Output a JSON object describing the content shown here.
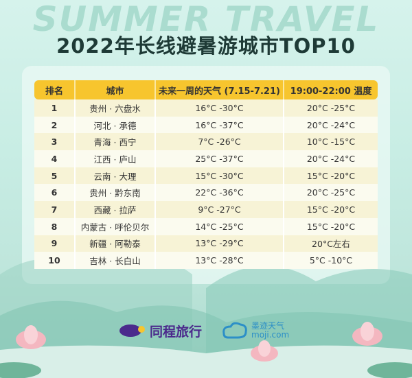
{
  "watermark": "SUMMER TRAVEL",
  "title": "2022年长线避暑游城市TOP10",
  "table": {
    "headers": [
      "排名",
      "城市",
      "未来一周的天气 (7.15-7.21)",
      "19:00-22:00 温度"
    ],
    "rows": [
      [
        "1",
        "贵州 · 六盘水",
        "16°C -30°C",
        "20°C -25°C"
      ],
      [
        "2",
        "河北 · 承德",
        "16°C -37°C",
        "20°C -24°C"
      ],
      [
        "3",
        "青海 · 西宁",
        "7°C -26°C",
        "10°C -15°C"
      ],
      [
        "4",
        "江西 · 庐山",
        "25°C -37°C",
        "20°C -24°C"
      ],
      [
        "5",
        "云南 · 大理",
        "15°C -30°C",
        "15°C -20°C"
      ],
      [
        "6",
        "贵州 · 黔东南",
        "22°C -36°C",
        "20°C -25°C"
      ],
      [
        "7",
        "西藏 · 拉萨",
        "9°C -27°C",
        "15°C -20°C"
      ],
      [
        "8",
        "内蒙古 · 呼伦贝尔",
        "14°C -25°C",
        "15°C -20°C"
      ],
      [
        "9",
        "新疆 · 阿勒泰",
        "13°C -29°C",
        "20°C左右"
      ],
      [
        "10",
        "吉林 · 长白山",
        "13°C -28°C",
        "5°C -10°C"
      ]
    ]
  },
  "logos": {
    "tongcheng": "同程旅行",
    "moji_cn": "墨迹天气",
    "moji_en": "moji.com"
  }
}
